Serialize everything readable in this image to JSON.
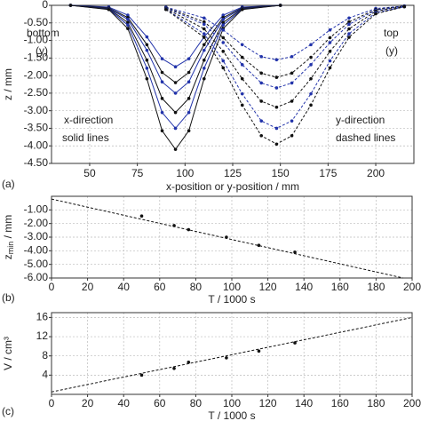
{
  "chart_data": [
    {
      "type": "line",
      "panel_label": "(a)",
      "x_label": "x-position or y-position / mm",
      "y_label": "z / mm",
      "xlim": [
        30,
        220
      ],
      "ylim": [
        -4.5,
        0
      ],
      "xticks": [
        50,
        75,
        100,
        125,
        150,
        175,
        200
      ],
      "yticks": [
        0,
        {
          "value": -0.5,
          "label": "-0.50"
        },
        {
          "value": -1.0,
          "label": "-1.00"
        },
        {
          "value": -1.5,
          "label": "-1.50"
        },
        {
          "value": -2.0,
          "label": "-2.00"
        },
        {
          "value": -2.5,
          "label": "-2.50"
        },
        {
          "value": -3.0,
          "label": "-3.00"
        },
        {
          "value": -3.5,
          "label": "-3.50"
        },
        {
          "value": -4.0,
          "label": "-4.00"
        },
        {
          "value": -4.5,
          "label": "-4.50"
        }
      ],
      "grid": true,
      "annotations": [
        "bottom",
        "(y)",
        "top",
        "(y)",
        "x-direction",
        "solid lines",
        "y-direction",
        "dashed lines"
      ],
      "series": [
        {
          "color": "#2233aa",
          "line_style": "solid",
          "marker": true,
          "x": [
            40,
            60,
            70,
            80,
            88,
            95,
            102,
            110,
            120,
            130,
            150
          ],
          "values": [
            0,
            -0.05,
            -0.28,
            -0.9,
            -1.52,
            -1.75,
            -1.52,
            -0.9,
            -0.28,
            -0.05,
            0
          ]
        },
        {
          "color": "#111111",
          "line_style": "solid",
          "marker": true,
          "x": [
            40,
            60,
            70,
            80,
            88,
            95,
            102,
            110,
            120,
            130,
            150
          ],
          "values": [
            0,
            -0.07,
            -0.35,
            -1.12,
            -1.91,
            -2.2,
            -1.91,
            -1.12,
            -0.35,
            -0.07,
            0
          ]
        },
        {
          "color": "#2233aa",
          "line_style": "solid",
          "marker": true,
          "x": [
            40,
            60,
            70,
            80,
            88,
            95,
            102,
            110,
            120,
            130,
            150
          ],
          "values": [
            0,
            -0.08,
            -0.4,
            -1.28,
            -2.18,
            -2.5,
            -2.18,
            -1.28,
            -0.4,
            -0.08,
            0
          ]
        },
        {
          "color": "#111111",
          "line_style": "solid",
          "marker": true,
          "x": [
            40,
            60,
            70,
            80,
            88,
            95,
            102,
            110,
            120,
            130,
            150
          ],
          "values": [
            0,
            -0.09,
            -0.49,
            -1.56,
            -2.65,
            -3.05,
            -2.65,
            -1.56,
            -0.49,
            -0.09,
            0
          ]
        },
        {
          "color": "#2233aa",
          "line_style": "solid",
          "marker": true,
          "x": [
            40,
            60,
            70,
            80,
            88,
            95,
            102,
            110,
            120,
            130,
            150
          ],
          "values": [
            0,
            -0.11,
            -0.56,
            -1.79,
            -3.05,
            -3.5,
            -3.05,
            -1.79,
            -0.56,
            -0.11,
            0
          ]
        },
        {
          "color": "#111111",
          "line_style": "solid",
          "marker": true,
          "x": [
            40,
            60,
            70,
            80,
            88,
            95,
            102,
            110,
            120,
            130,
            150
          ],
          "values": [
            0,
            -0.12,
            -0.66,
            -2.09,
            -3.57,
            -4.1,
            -3.57,
            -2.09,
            -0.66,
            -0.12,
            0
          ]
        },
        {
          "color": "#2233aa",
          "line_style": "dashed",
          "marker": true,
          "x": [
            90,
            110,
            120,
            130,
            140,
            148,
            156,
            166,
            176,
            186,
            200,
            215
          ],
          "values": [
            -0.05,
            -0.36,
            -0.7,
            -1.12,
            -1.46,
            -1.55,
            -1.46,
            -1.12,
            -0.7,
            -0.36,
            -0.09,
            -0.02
          ]
        },
        {
          "color": "#111111",
          "line_style": "dashed",
          "marker": true,
          "x": [
            90,
            110,
            120,
            130,
            140,
            148,
            156,
            166,
            176,
            186,
            200,
            215
          ],
          "values": [
            -0.06,
            -0.47,
            -0.92,
            -1.48,
            -1.93,
            -2.05,
            -1.93,
            -1.48,
            -0.92,
            -0.47,
            -0.12,
            -0.02
          ]
        },
        {
          "color": "#2233aa",
          "line_style": "dashed",
          "marker": true,
          "x": [
            90,
            110,
            120,
            130,
            140,
            148,
            156,
            166,
            176,
            186,
            200,
            215
          ],
          "values": [
            -0.07,
            -0.54,
            -1.06,
            -1.69,
            -2.21,
            -2.35,
            -2.21,
            -1.69,
            -1.06,
            -0.54,
            -0.14,
            -0.02
          ]
        },
        {
          "color": "#111111",
          "line_style": "dashed",
          "marker": true,
          "x": [
            90,
            110,
            120,
            130,
            140,
            148,
            156,
            166,
            176,
            186,
            200,
            215
          ],
          "values": [
            -0.09,
            -0.67,
            -1.31,
            -2.09,
            -2.73,
            -2.9,
            -2.73,
            -2.09,
            -1.31,
            -0.67,
            -0.17,
            -0.03
          ]
        },
        {
          "color": "#2233aa",
          "line_style": "dashed",
          "marker": true,
          "x": [
            90,
            110,
            120,
            130,
            140,
            148,
            156,
            166,
            176,
            186,
            200,
            215
          ],
          "values": [
            -0.11,
            -0.81,
            -1.58,
            -2.52,
            -3.29,
            -3.5,
            -3.29,
            -2.52,
            -1.58,
            -0.81,
            -0.21,
            -0.04
          ]
        },
        {
          "color": "#111111",
          "line_style": "dashed",
          "marker": true,
          "x": [
            90,
            110,
            120,
            130,
            140,
            148,
            156,
            166,
            176,
            186,
            200,
            215
          ],
          "values": [
            -0.12,
            -0.91,
            -1.78,
            -2.84,
            -3.71,
            -3.95,
            -3.71,
            -2.84,
            -1.78,
            -0.91,
            -0.24,
            -0.04
          ]
        }
      ]
    },
    {
      "type": "line",
      "panel_label": "(b)",
      "x_label": "T / 1000 s",
      "y_label": "z",
      "y_label_sub": "min",
      "y_label_unit": " / mm",
      "xlim": [
        0,
        200
      ],
      "ylim": [
        -6.0,
        0
      ],
      "xticks": [
        0,
        20,
        40,
        60,
        80,
        100,
        120,
        140,
        160,
        180,
        200
      ],
      "yticks": [
        {
          "value": -1.0,
          "label": "-1.00"
        },
        {
          "value": -2.0,
          "label": "-2.00"
        },
        {
          "value": -3.0,
          "label": "-3.00"
        },
        {
          "value": -4.0,
          "label": "-4.00"
        },
        {
          "value": -5.0,
          "label": "-5.00"
        },
        {
          "value": -6.0,
          "label": "-6.00"
        }
      ],
      "grid": true,
      "series": [
        {
          "color": "#111111",
          "line_style": "none",
          "marker": true,
          "x": [
            50,
            68,
            76,
            97,
            115,
            135
          ],
          "values": [
            -1.45,
            -2.15,
            -2.45,
            -3.0,
            -3.6,
            -4.1
          ]
        },
        {
          "color": "#111111",
          "line_style": "dashed",
          "marker": false,
          "x": [
            0,
            195
          ],
          "values": [
            -0.2,
            -6.0
          ]
        }
      ]
    },
    {
      "type": "line",
      "panel_label": "(c)",
      "x_label": "T / 1000 s",
      "y_label": "V / cm³",
      "xlim": [
        0,
        200
      ],
      "ylim": [
        0,
        17
      ],
      "xticks": [
        0,
        20,
        40,
        60,
        80,
        100,
        120,
        140,
        160,
        180,
        200
      ],
      "yticks": [
        4,
        8,
        12,
        16
      ],
      "grid": true,
      "series": [
        {
          "color": "#111111",
          "line_style": "none",
          "marker": true,
          "x": [
            50,
            68,
            76,
            97,
            115,
            135
          ],
          "values": [
            4.0,
            5.4,
            6.7,
            7.6,
            9.0,
            10.7
          ]
        },
        {
          "color": "#111111",
          "line_style": "dashed",
          "marker": false,
          "x": [
            0,
            200
          ],
          "values": [
            0.5,
            16.0
          ]
        }
      ]
    }
  ]
}
